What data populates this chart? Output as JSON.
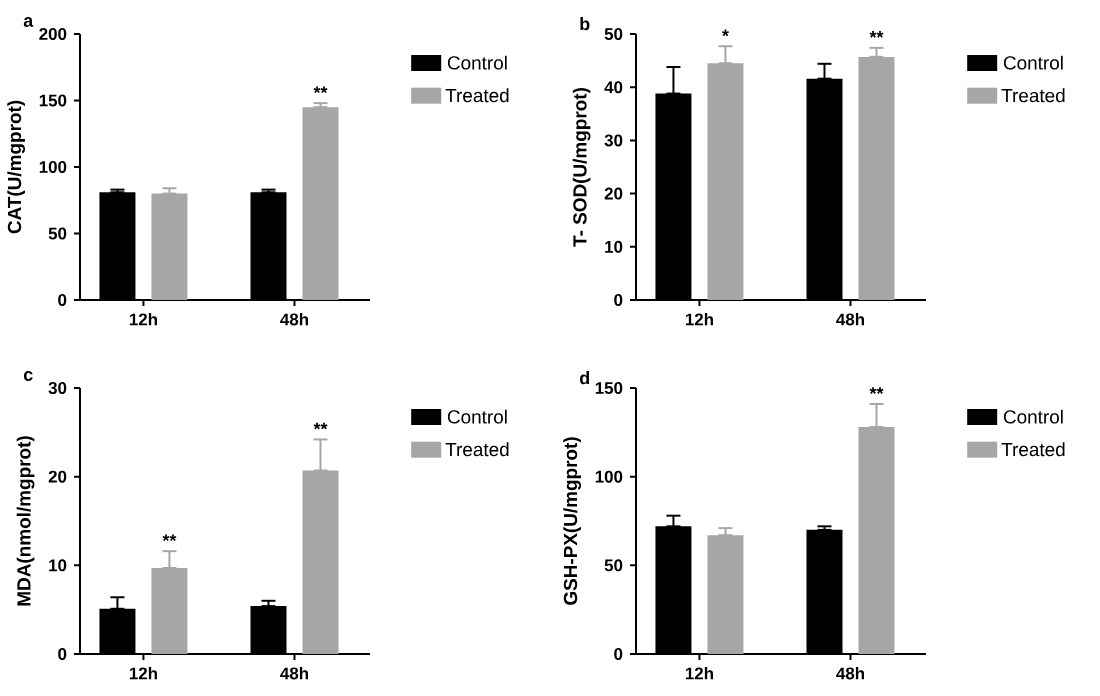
{
  "chart_data": [
    {
      "type": "bar",
      "title": "a",
      "ylabel": "CAT(U/mgprot)",
      "categories": [
        "12h",
        "48h"
      ],
      "ylim": [
        0,
        200
      ],
      "yticks": [
        0,
        50,
        100,
        150,
        200
      ],
      "legend": "right",
      "series": [
        {
          "name": "Control",
          "color": "#000000",
          "values": [
            81,
            81
          ],
          "errors": [
            [
              81,
              83
            ],
            [
              81,
              83
            ]
          ]
        },
        {
          "name": "Treated",
          "color": "#a6a6a6",
          "values": [
            80,
            145
          ],
          "errors": [
            [
              80,
              84
            ],
            [
              145,
              148
            ]
          ]
        }
      ],
      "annotations": [
        {
          "text": "**",
          "x": "48h",
          "y": 145
        }
      ]
    },
    {
      "type": "bar",
      "title": "b",
      "ylabel": "T- SOD(U/mgprot)",
      "categories": [
        "12h",
        "48h"
      ],
      "ylim": [
        0,
        50
      ],
      "yticks": [
        0,
        10,
        20,
        30,
        40,
        50
      ],
      "legend": "right",
      "series": [
        {
          "name": "Control",
          "color": "#000000",
          "values": [
            38.8,
            41.6
          ],
          "errors": [
            [
              38.8,
              43.8
            ],
            [
              41.6,
              44.4
            ]
          ]
        },
        {
          "name": "Treated",
          "color": "#a6a6a6",
          "values": [
            44.5,
            45.7
          ],
          "errors": [
            [
              44.5,
              47.7
            ],
            [
              45.7,
              47.4
            ]
          ]
        }
      ],
      "annotations": [
        {
          "text": "*",
          "x": "12h",
          "y": 44.5
        },
        {
          "text": "**",
          "x": "48h",
          "y": 45.7
        }
      ]
    },
    {
      "type": "bar",
      "title": "c",
      "ylabel": "MDA(nmol/mgprot)",
      "categories": [
        "12h",
        "48h"
      ],
      "ylim": [
        0,
        30
      ],
      "yticks": [
        0,
        10,
        20,
        30
      ],
      "legend": "right",
      "series": [
        {
          "name": "Control",
          "color": "#000000",
          "values": [
            5.1,
            5.4
          ],
          "errors": [
            [
              5.1,
              6.4
            ],
            [
              5.4,
              6.0
            ]
          ]
        },
        {
          "name": "Treated",
          "color": "#a6a6a6",
          "values": [
            9.7,
            20.7
          ],
          "errors": [
            [
              9.7,
              11.6
            ],
            [
              20.7,
              24.2
            ]
          ]
        }
      ],
      "annotations": [
        {
          "text": "**",
          "x": "12h",
          "y": 9.7
        },
        {
          "text": "**",
          "x": "48h",
          "y": 20.7
        }
      ]
    },
    {
      "type": "bar",
      "title": "d",
      "ylabel": "GSH-PX(U/mgprot)",
      "categories": [
        "12h",
        "48h"
      ],
      "ylim": [
        0,
        150
      ],
      "yticks": [
        0,
        50,
        100,
        150
      ],
      "legend": "right",
      "series": [
        {
          "name": "Control",
          "color": "#000000",
          "values": [
            72,
            70
          ],
          "errors": [
            [
              72,
              78
            ],
            [
              70,
              72
            ]
          ]
        },
        {
          "name": "Treated",
          "color": "#a6a6a6",
          "values": [
            67,
            128
          ],
          "errors": [
            [
              67,
              71
            ],
            [
              128,
              141
            ]
          ]
        }
      ],
      "annotations": [
        {
          "text": "**",
          "x": "48h",
          "y": 128
        }
      ]
    }
  ]
}
